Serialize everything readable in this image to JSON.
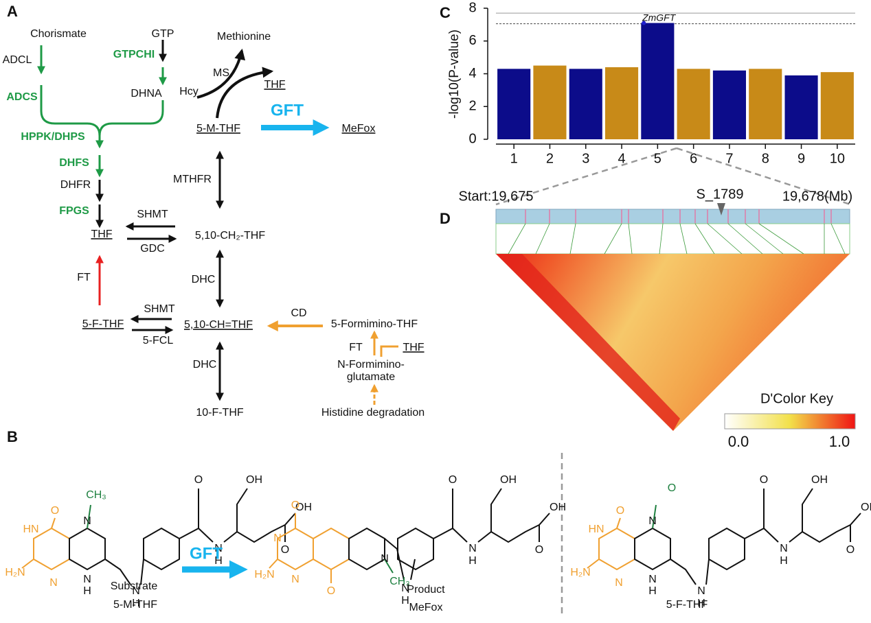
{
  "panel_labels": [
    "A",
    "B",
    "C",
    "D"
  ],
  "pathway": {
    "nodes": [
      "Chorismate",
      "GTP",
      "Methionine",
      "ADCL",
      "GTPCHI",
      "MS",
      "Hcy",
      "THF",
      "DHNA",
      "ADCS",
      "GFT",
      "5-M-THF",
      "MeFox",
      "HPPK/DHPS",
      "MTHFR",
      "DHFS",
      "DHFR",
      "FPGS",
      "SHMT",
      "THF",
      "5,10-CH₂-THF",
      "GDC",
      "FT",
      "DHC",
      "SHMT",
      "CD",
      "5-F-THF",
      "5,10-CH=THF",
      "5-Formimino-THF",
      "5-FCL",
      "FT",
      "THF",
      "N-Formimino-",
      "glutamate",
      "DHC",
      "10-F-THF",
      "Histidine degradation"
    ]
  },
  "structures": {
    "arrow_label": "GFT",
    "molecules": [
      {
        "role": "Substrate",
        "name": "5-M-THF",
        "atoms": [
          "CH₃",
          "N",
          "O",
          "HN",
          "H₂N",
          "N",
          "N",
          "H",
          "N",
          "H",
          "O",
          "N",
          "H",
          "OH",
          "OH",
          "O"
        ]
      },
      {
        "role": "Product",
        "name": "MeFox",
        "atoms": [
          "O",
          "N",
          "H₂N",
          "N",
          "O",
          "N",
          "CH₃",
          "N",
          "H",
          "O",
          "N",
          "H",
          "OH",
          "OH",
          "O"
        ]
      },
      {
        "name": "5-F-THF",
        "atoms": [
          "O",
          "N",
          "O",
          "HN",
          "H₂N",
          "N",
          "N",
          "H",
          "N",
          "H",
          "O",
          "N",
          "H",
          "OH",
          "OH",
          "O"
        ]
      }
    ]
  },
  "chart_data": {
    "type": "manhattan",
    "ylabel": "-log10(P-value)",
    "categories": [
      "1",
      "2",
      "3",
      "4",
      "5",
      "6",
      "7",
      "8",
      "9",
      "10"
    ],
    "values": [
      4.3,
      4.5,
      4.3,
      4.4,
      7.1,
      4.3,
      4.2,
      4.3,
      3.9,
      4.1
    ],
    "colors": [
      "#0c0c8a",
      "#c88a18",
      "#0c0c8a",
      "#c88a18",
      "#0c0c8a",
      "#c88a18",
      "#0c0c8a",
      "#c88a18",
      "#0c0c8a",
      "#c88a18"
    ],
    "ylim": [
      0,
      8
    ],
    "yticks": [
      0,
      2,
      4,
      6,
      8
    ],
    "hlines": [
      {
        "value": 7.7,
        "style": "solid"
      },
      {
        "value": 7.05,
        "style": "dashed"
      }
    ],
    "highlight": {
      "label": "ZmGFT",
      "value": 7.1,
      "color": "#2020d0"
    }
  },
  "ld_block": {
    "start": "Start:19,675",
    "snp": "S_1789",
    "end": "19,678(Mb)",
    "color_key": {
      "title": "D'Color Key",
      "min": "0.0",
      "max": "1.0"
    }
  }
}
